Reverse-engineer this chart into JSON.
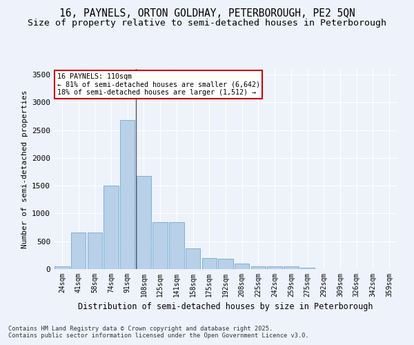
{
  "title1": "16, PAYNELS, ORTON GOLDHAY, PETERBOROUGH, PE2 5QN",
  "title2": "Size of property relative to semi-detached houses in Peterborough",
  "xlabel": "Distribution of semi-detached houses by size in Peterborough",
  "ylabel": "Number of semi-detached properties",
  "categories": [
    "24sqm",
    "41sqm",
    "58sqm",
    "74sqm",
    "91sqm",
    "108sqm",
    "125sqm",
    "141sqm",
    "158sqm",
    "175sqm",
    "192sqm",
    "208sqm",
    "225sqm",
    "242sqm",
    "259sqm",
    "275sqm",
    "292sqm",
    "309sqm",
    "326sqm",
    "342sqm",
    "359sqm"
  ],
  "values": [
    50,
    660,
    660,
    1500,
    2680,
    1680,
    840,
    840,
    370,
    200,
    190,
    100,
    50,
    50,
    50,
    20,
    0,
    0,
    0,
    0,
    0
  ],
  "bar_color": "#b8d0e8",
  "bar_edge_color": "#6aaad4",
  "highlight_index": 5,
  "highlight_line_color": "#555555",
  "annotation_title": "16 PAYNELS: 110sqm",
  "annotation_line1": "← 81% of semi-detached houses are smaller (6,642)",
  "annotation_line2": "18% of semi-detached houses are larger (1,512) →",
  "annotation_box_color": "#ffffff",
  "annotation_box_edge": "#cc0000",
  "ylim": [
    0,
    3600
  ],
  "yticks": [
    0,
    500,
    1000,
    1500,
    2000,
    2500,
    3000,
    3500
  ],
  "footer1": "Contains HM Land Registry data © Crown copyright and database right 2025.",
  "footer2": "Contains public sector information licensed under the Open Government Licence v3.0.",
  "bg_color": "#eef2fa",
  "plot_bg_color": "#eef2fa",
  "title_fontsize": 10.5,
  "subtitle_fontsize": 9.5
}
